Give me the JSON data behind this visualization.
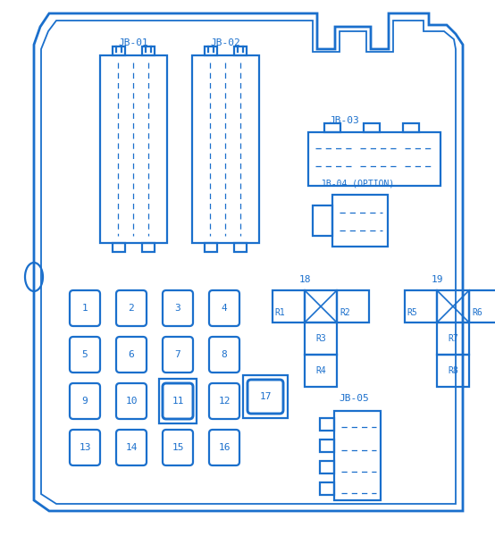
{
  "bg_color": "#ffffff",
  "line_color": "#1a6fcc",
  "fuse_rows": [
    [
      "1",
      "2",
      "3",
      "4"
    ],
    [
      "5",
      "6",
      "7",
      "8"
    ],
    [
      "9",
      "10",
      "11",
      "12"
    ],
    [
      "13",
      "14",
      "15",
      "16"
    ]
  ]
}
